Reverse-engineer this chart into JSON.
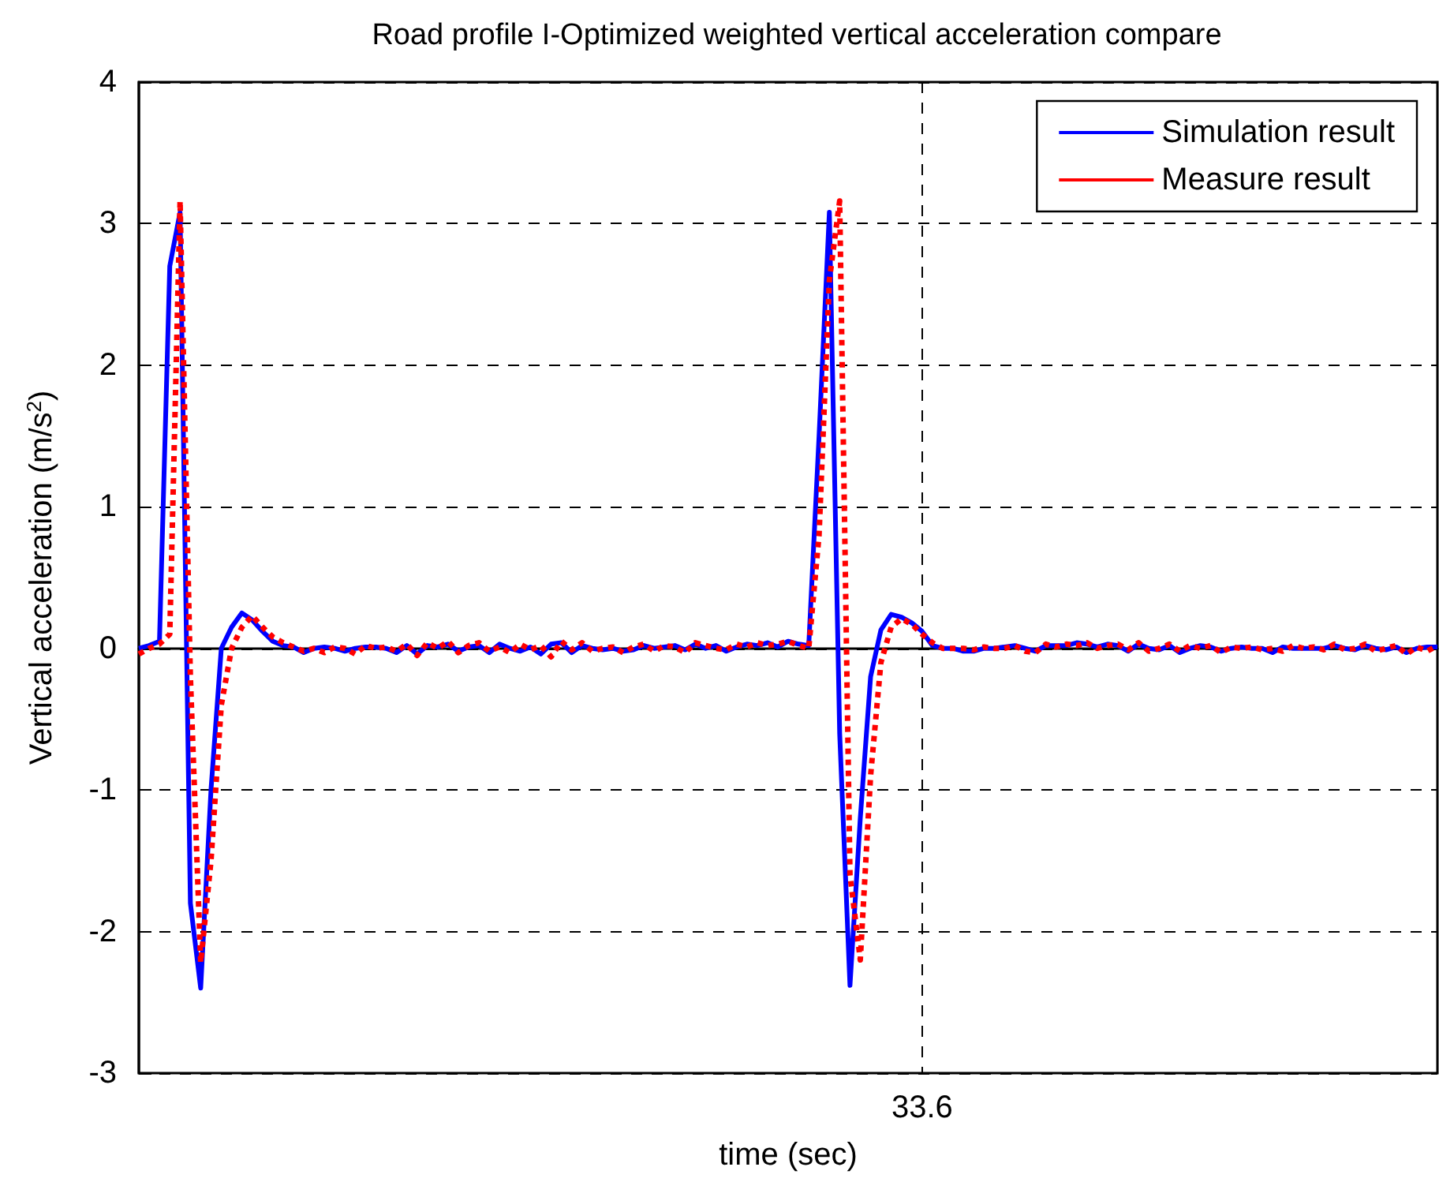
{
  "chart_data": {
    "type": "line",
    "title": "Road profile I-Optimized weighted vertical acceleration compare",
    "xlabel": "time (sec)",
    "ylabel": "Vertical acceleration (m/s$^{2}$)",
    "categories": [
      null,
      null,
      null,
      null,
      null,
      null,
      null,
      null,
      null,
      null,
      null,
      null,
      null,
      null,
      null,
      null,
      null,
      null,
      null,
      null,
      null,
      null,
      null,
      null,
      null,
      null,
      null,
      null,
      null,
      null,
      null,
      null,
      null,
      null,
      null,
      null,
      null,
      null,
      null,
      null,
      null,
      null,
      null,
      null,
      null,
      null,
      null,
      null,
      null,
      null,
      null,
      null,
      null,
      null,
      null,
      null,
      null,
      null,
      null,
      null,
      null,
      null,
      null,
      null,
      null,
      null,
      null,
      null,
      null,
      null,
      null,
      null,
      null,
      null,
      null,
      null,
      "33.6",
      null,
      null,
      null,
      null,
      null,
      null,
      null,
      null,
      null,
      null,
      null,
      null,
      null,
      null,
      null,
      null,
      null,
      null,
      null,
      null,
      null,
      null,
      null,
      null,
      null,
      null,
      null,
      null,
      null,
      null,
      null,
      null,
      null,
      null,
      null,
      null,
      null,
      null,
      null,
      null,
      null,
      null,
      null,
      null,
      null,
      null,
      null,
      null,
      null,
      null
    ],
    "series": [
      {
        "name": "Simulation result",
        "color": "#0000ff",
        "line_style": "solid",
        "values": [
          0,
          0.02,
          0.05,
          2.7,
          3.08,
          -1.8,
          -2.4,
          -1.0,
          0,
          0.15,
          0.25,
          0.2,
          0.12,
          0.05,
          0.02,
          0.01,
          -0.03,
          0,
          0.01,
          0,
          -0.02,
          0,
          0.01,
          0.01,
          0,
          -0.03,
          0.02,
          -0.04,
          0.02,
          0.01,
          0.03,
          -0.02,
          0.01,
          0.02,
          -0.03,
          0.03,
          0,
          -0.02,
          0.01,
          -0.04,
          0.03,
          0.04,
          -0.03,
          0.02,
          0,
          -0.01,
          0,
          -0.02,
          -0.01,
          0.02,
          0,
          0.01,
          0.02,
          -0.01,
          0.03,
          0,
          0.02,
          -0.02,
          0.01,
          0.03,
          0.02,
          0.04,
          0.01,
          0.05,
          0.03,
          0.02,
          1.5,
          3.08,
          -0.6,
          -2.38,
          -1.2,
          -0.2,
          0.13,
          0.24,
          0.22,
          0.18,
          0.12,
          0.02,
          0,
          0,
          -0.02,
          -0.02,
          0,
          0,
          0.01,
          0.02,
          0,
          -0.02,
          0.02,
          0.02,
          0.02,
          0.04,
          0.03,
          0.01,
          0.03,
          0.02,
          -0.02,
          0.03,
          0,
          -0.01,
          0.02,
          -0.03,
          0,
          0.02,
          0.01,
          -0.02,
          0,
          0.01,
          0,
          0,
          -0.03,
          0.01,
          0,
          0,
          0,
          0,
          0.02,
          0,
          -0.01,
          0.02,
          0,
          -0.01,
          0.01,
          -0.03,
          0,
          0.01,
          0.01
        ]
      },
      {
        "name": "Measure result",
        "color": "#ff0000",
        "line_style": "dotted",
        "values": [
          -0.04,
          0,
          0.03,
          0.1,
          3.16,
          -0.2,
          -2.22,
          -1.5,
          -0.4,
          0,
          0.15,
          0.23,
          0.15,
          0.08,
          0.04,
          0.01,
          -0.02,
          0,
          -0.03,
          0.01,
          0,
          -0.04,
          0.02,
          0,
          0.01,
          -0.02,
          0.03,
          -0.05,
          0.04,
          0,
          0.05,
          -0.03,
          0.02,
          0.04,
          -0.02,
          0.01,
          -0.03,
          0.03,
          -0.01,
          0.02,
          -0.06,
          0.05,
          -0.01,
          0.04,
          -0.02,
          0,
          0.01,
          -0.03,
          0.01,
          0.03,
          -0.02,
          0.02,
          0.01,
          -0.03,
          0.04,
          0.02,
          0,
          -0.01,
          0.03,
          0.01,
          0.04,
          0.02,
          0.03,
          0.05,
          0.02,
          0,
          0.8,
          2.6,
          3.16,
          -1.6,
          -2.2,
          -0.9,
          -0.1,
          0.15,
          0.21,
          0.17,
          0.1,
          0.04,
          0,
          0,
          0,
          -0.01,
          0.01,
          0,
          0,
          0.02,
          -0.02,
          -0.03,
          0.03,
          0.01,
          0.03,
          0.02,
          0.04,
          0,
          0.02,
          0.03,
          -0.01,
          0.04,
          -0.02,
          0,
          0.03,
          -0.02,
          0.02,
          0,
          0.02,
          -0.03,
          0.01,
          0,
          0.01,
          -0.01,
          0,
          -0.02,
          0.02,
          0,
          0.01,
          -0.01,
          0.03,
          -0.01,
          0,
          0.03,
          -0.02,
          0,
          0.02,
          -0.04,
          0.01,
          -0.02,
          0.02
        ]
      }
    ],
    "ylim": [
      -3,
      4
    ],
    "yticks": [
      -3,
      -2,
      -1,
      0,
      1,
      2,
      3,
      4
    ],
    "grid": true,
    "legend": "top right",
    "marker": "none"
  }
}
